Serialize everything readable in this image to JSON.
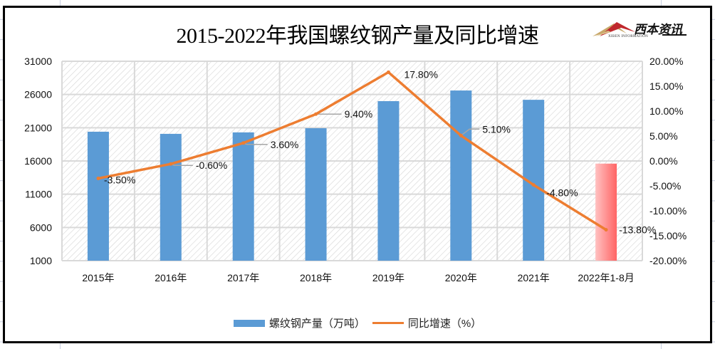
{
  "page": {
    "logo": {
      "name": "西本资讯",
      "subtitle": "XIBEN INFORMATION"
    }
  },
  "chart_data": {
    "type": "bar",
    "combo": "bar+line",
    "title": "2015-2022年我国螺纹钢产量及同比增速",
    "categories": [
      "2015年",
      "2016年",
      "2017年",
      "2018年",
      "2019年",
      "2020年",
      "2021年",
      "2022年1-8月"
    ],
    "series": [
      {
        "name": "螺纹钢产量（万吨）",
        "type": "bar",
        "axis": "left",
        "color": "#5b9bd5",
        "highlight_last_color": "#ff6b6b",
        "values": [
          20400,
          20080,
          20300,
          20930,
          25000,
          26600,
          25200,
          15600
        ]
      },
      {
        "name": "同比增速（%）",
        "type": "line",
        "axis": "right",
        "color": "#ed7d31",
        "values": [
          -3.5,
          -0.6,
          3.6,
          9.4,
          17.8,
          5.1,
          -4.8,
          -13.8
        ],
        "labels": [
          "-3.50%",
          "-0.60%",
          "3.60%",
          "9.40%",
          "17.80%",
          "5.10%",
          "-4.80%",
          "-13.80%"
        ]
      }
    ],
    "y_left": {
      "min": 1000,
      "max": 31000,
      "step": 5000,
      "ticks": [
        "1000",
        "6000",
        "11000",
        "16000",
        "21000",
        "26000",
        "31000"
      ]
    },
    "y_right": {
      "min": -20,
      "max": 20,
      "step": 5,
      "ticks": [
        "-20.00%",
        "-15.00%",
        "-10.00%",
        "-5.00%",
        "0.00%",
        "5.00%",
        "10.00%",
        "15.00%",
        "20.00%"
      ]
    },
    "grid": true,
    "plot_background": "hatched",
    "legend": {
      "position": "bottom",
      "items": [
        "螺纹钢产量（万吨）",
        "同比增速（%）"
      ]
    }
  }
}
